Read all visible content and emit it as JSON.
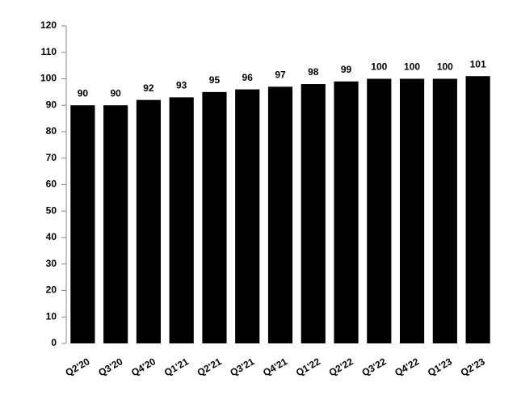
{
  "chart_data": {
    "type": "bar",
    "categories": [
      "Q2'20",
      "Q3'20",
      "Q4'20",
      "Q1'21",
      "Q2'21",
      "Q3'21",
      "Q4'21",
      "Q1'22",
      "Q2'22",
      "Q3'22",
      "Q4'22",
      "Q1'23",
      "Q2'23"
    ],
    "values": [
      90,
      90,
      92,
      93,
      95,
      96,
      97,
      98,
      99,
      100,
      100,
      100,
      101
    ],
    "color": "#000000",
    "ylim": [
      0,
      120
    ],
    "yticks": [
      0,
      10,
      20,
      30,
      40,
      50,
      60,
      70,
      80,
      90,
      100,
      110,
      120
    ],
    "grid": false
  }
}
